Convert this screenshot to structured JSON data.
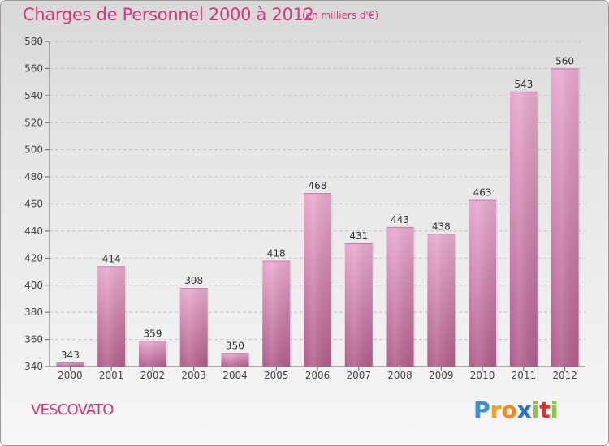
{
  "title": "Charges de Personnel 2000 à 2012",
  "subtitle": "(en milliers d'€)",
  "place": "VESCOVATO",
  "logo": {
    "letters": [
      "P",
      "r",
      "o",
      "x",
      "i",
      "t",
      "i"
    ],
    "colors": [
      "#3a8fd1",
      "#f0a01e",
      "#f28a1d",
      "#2a74c8",
      "#8cc63f",
      "#e0312f",
      "#8cc63f"
    ]
  },
  "colors": {
    "accent": "#d8357d",
    "bar_light": "#e8a9cf",
    "bar_dark": "#b15e8c"
  },
  "chart_data": {
    "type": "bar",
    "categories": [
      "2000",
      "2001",
      "2002",
      "2003",
      "2004",
      "2005",
      "2006",
      "2007",
      "2008",
      "2009",
      "2010",
      "2011",
      "2012"
    ],
    "values": [
      343,
      414,
      359,
      398,
      350,
      418,
      468,
      431,
      443,
      438,
      463,
      543,
      560
    ],
    "ylim": [
      340,
      580
    ],
    "yticks": [
      340,
      360,
      380,
      400,
      420,
      440,
      460,
      480,
      500,
      520,
      540,
      560,
      580
    ],
    "grid": true,
    "xlabel": "",
    "ylabel": ""
  }
}
